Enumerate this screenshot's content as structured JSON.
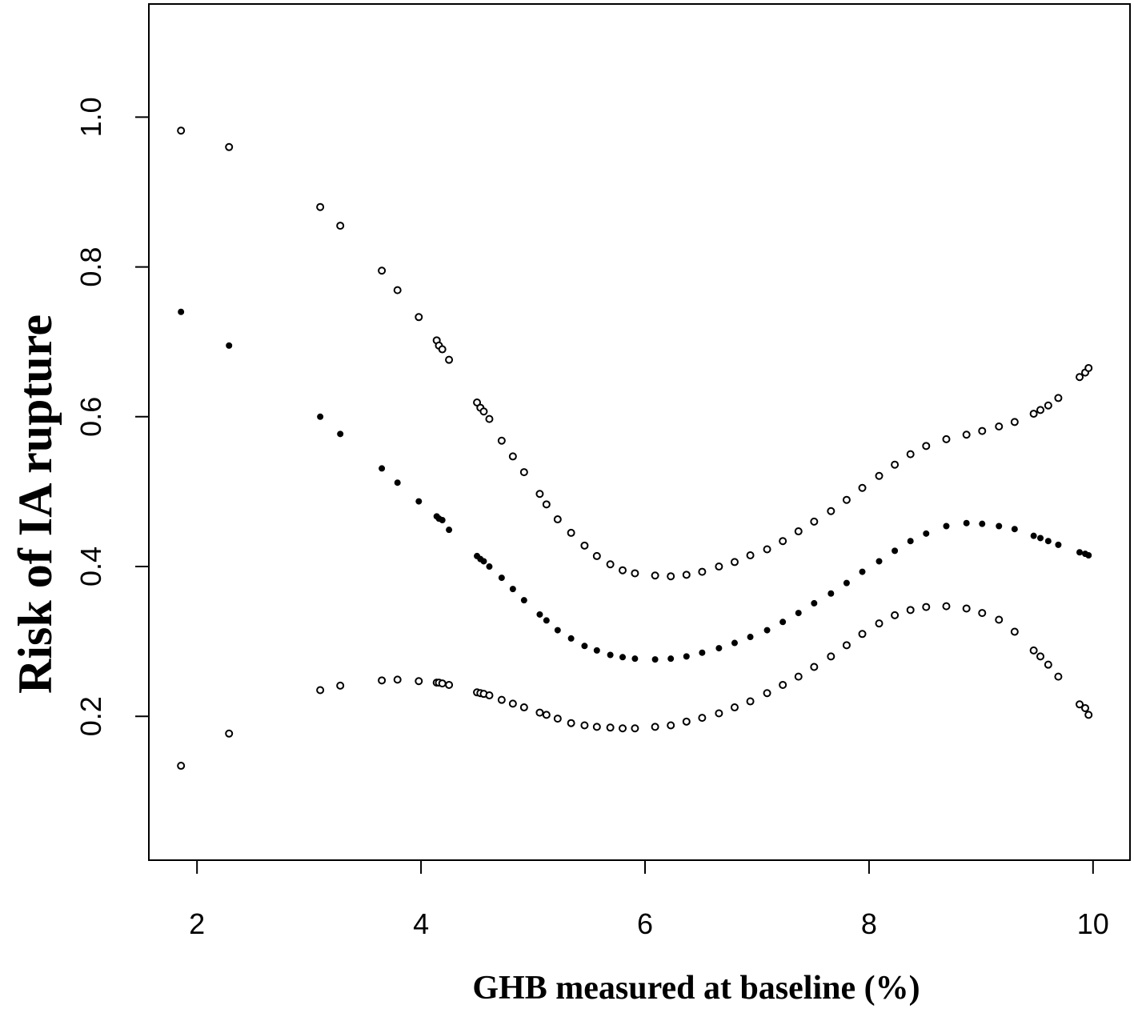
{
  "chart_data": {
    "type": "scatter",
    "x_label": "GHB measured at baseline (%)",
    "y_label": "Risk of IA rupture",
    "xlim": [
      1.57,
      10.33
    ],
    "ylim": [
      0.008,
      1.151
    ],
    "xticks": [
      2,
      4,
      6,
      8,
      10
    ],
    "yticks": [
      0.2,
      0.4,
      0.6,
      0.8,
      {
        "value": 1,
        "label": "1.0"
      }
    ],
    "x": [
      1.857,
      2.286,
      3.1,
      3.279,
      3.65,
      3.79,
      3.98,
      4.14,
      4.16,
      4.19,
      4.25,
      4.5,
      4.53,
      4.56,
      4.61,
      4.72,
      4.82,
      4.92,
      5.06,
      5.12,
      5.22,
      5.34,
      5.46,
      5.57,
      5.69,
      5.8,
      5.91,
      6.09,
      6.23,
      6.37,
      6.51,
      6.66,
      6.8,
      6.94,
      7.09,
      7.23,
      7.37,
      7.51,
      7.66,
      7.8,
      7.94,
      8.09,
      8.23,
      8.37,
      8.51,
      8.69,
      8.87,
      9.01,
      9.16,
      9.3,
      9.47,
      9.53,
      9.6,
      9.69,
      9.88,
      9.93,
      9.96
    ],
    "series": [
      {
        "color": "#000000",
        "marker": "open",
        "values": [
          0.982,
          0.96,
          0.88,
          0.855,
          0.795,
          0.769,
          0.733,
          0.702,
          0.695,
          0.69,
          0.676,
          0.619,
          0.612,
          0.607,
          0.597,
          0.568,
          0.547,
          0.526,
          0.497,
          0.483,
          0.463,
          0.445,
          0.428,
          0.414,
          0.403,
          0.395,
          0.391,
          0.388,
          0.387,
          0.389,
          0.393,
          0.4,
          0.406,
          0.415,
          0.423,
          0.434,
          0.447,
          0.46,
          0.474,
          0.489,
          0.505,
          0.521,
          0.536,
          0.55,
          0.561,
          0.57,
          0.576,
          0.581,
          0.587,
          0.593,
          0.604,
          0.609,
          0.615,
          0.625,
          0.653,
          0.659,
          0.665
        ]
      },
      {
        "color": "#000000",
        "marker": "filled",
        "values": [
          0.74,
          0.695,
          0.6,
          0.577,
          0.531,
          0.512,
          0.487,
          0.467,
          0.464,
          0.462,
          0.449,
          0.414,
          0.41,
          0.407,
          0.4,
          0.385,
          0.37,
          0.355,
          0.336,
          0.328,
          0.315,
          0.304,
          0.294,
          0.288,
          0.282,
          0.279,
          0.277,
          0.276,
          0.277,
          0.28,
          0.285,
          0.291,
          0.298,
          0.306,
          0.315,
          0.326,
          0.338,
          0.351,
          0.364,
          0.378,
          0.393,
          0.407,
          0.421,
          0.434,
          0.444,
          0.454,
          0.458,
          0.457,
          0.454,
          0.45,
          0.441,
          0.438,
          0.434,
          0.429,
          0.419,
          0.417,
          0.415
        ]
      },
      {
        "color": "#000000",
        "marker": "open",
        "values": [
          0.134,
          0.177,
          0.235,
          0.241,
          0.248,
          0.249,
          0.247,
          0.245,
          0.245,
          0.244,
          0.242,
          0.232,
          0.231,
          0.23,
          0.228,
          0.222,
          0.217,
          0.212,
          0.205,
          0.202,
          0.197,
          0.191,
          0.188,
          0.186,
          0.185,
          0.184,
          0.184,
          0.186,
          0.188,
          0.193,
          0.198,
          0.204,
          0.212,
          0.22,
          0.231,
          0.242,
          0.253,
          0.266,
          0.28,
          0.295,
          0.31,
          0.324,
          0.335,
          0.342,
          0.346,
          0.347,
          0.344,
          0.338,
          0.329,
          0.313,
          0.288,
          0.28,
          0.269,
          0.253,
          0.216,
          0.211,
          0.202
        ]
      }
    ]
  }
}
